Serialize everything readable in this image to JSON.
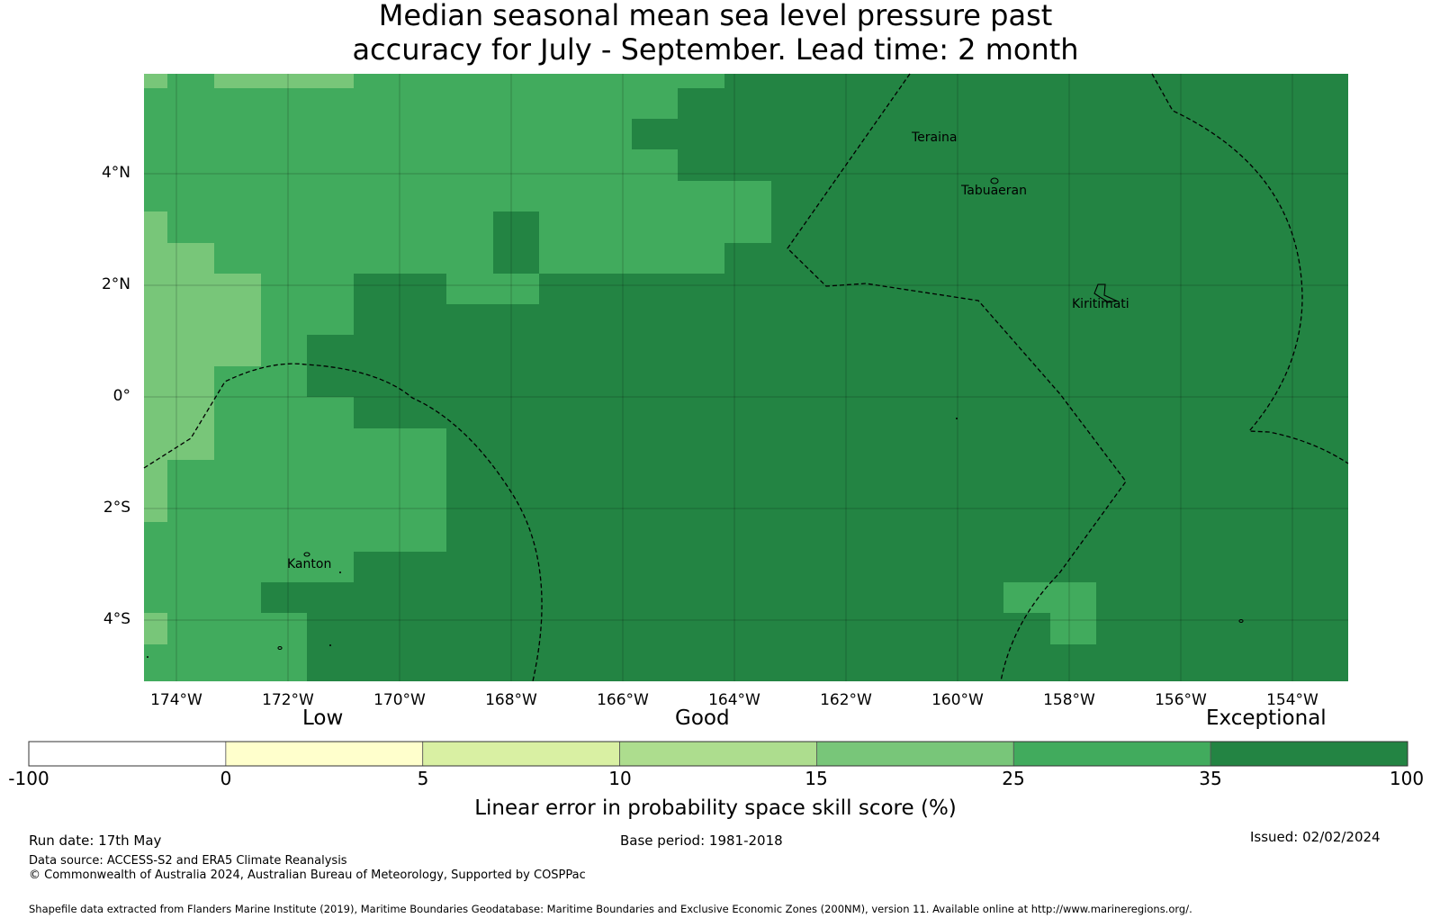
{
  "title_line1": "Median seasonal mean sea level pressure past",
  "title_line2": "accuracy for July - September. Lead time: 2 month",
  "lat_labels": [
    "4°N",
    "2°N",
    "0°",
    "2°S",
    "4°S"
  ],
  "lon_labels": [
    "174°W",
    "172°W",
    "170°W",
    "168°W",
    "166°W",
    "164°W",
    "162°W",
    "160°W",
    "158°W",
    "156°W",
    "154°W"
  ],
  "places": {
    "teraina": "Teraina",
    "tabuaeran": "Tabuaeran",
    "kiritimati": "Kiritimati",
    "kanton": "Kanton"
  },
  "categories": {
    "low": "Low",
    "good": "Good",
    "exceptional": "Exceptional"
  },
  "colorbar": {
    "ticks": [
      "-100",
      "0",
      "5",
      "10",
      "15",
      "25",
      "35",
      "100"
    ],
    "colors": [
      "#ffffff",
      "#ffffcc",
      "#d9f0a3",
      "#addd8e",
      "#78c679",
      "#41ab5d",
      "#238443"
    ],
    "label": "Linear error in probability space skill score (%)"
  },
  "footer": {
    "run_date": "Run date: 17th May",
    "base_period": "Base period: 1981-2018",
    "issued": "Issued: 02/02/2024",
    "data_source": "Data source: ACCESS-S2 and ERA5 Climate Reanalysis",
    "copyright": "© Commonwealth of Australia 2024, Australian Bureau of Meteorology, Supported by COSPPac",
    "shapefile": "Shapefile data extracted from Flanders Marine Institute (2019), Maritime Boundaries Geodatabase: Maritime Boundaries and Exclusive Economic Zones (200NM), version 11. Available online at http://www.marineregions.org/."
  }
}
